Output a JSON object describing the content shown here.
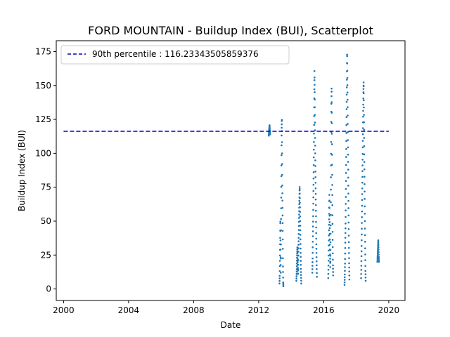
{
  "chart_data": {
    "type": "scatter",
    "title": "FORD MOUNTAIN - Buildup Index (BUI), Scatterplot",
    "xlabel": "Date",
    "ylabel": "Buildup Index (BUI)",
    "xlim": [
      1999.55,
      2021.0
    ],
    "ylim": [
      -8.5,
      183
    ],
    "x_ticks": [
      "2000",
      "2004",
      "2008",
      "2012",
      "2016",
      "2020"
    ],
    "y_ticks": [
      "0",
      "25",
      "50",
      "75",
      "100",
      "125",
      "150",
      "175"
    ],
    "grid": false,
    "legend_position": "top-left",
    "reference_line": {
      "label": "90th percentile : 116.23343505859376",
      "y": 116.23343505859376,
      "x_start": 2000.0,
      "x_end": 2020.0,
      "color": "#0000cc",
      "style": "dashed"
    },
    "series": [
      {
        "color": "#1f77b4",
        "marker_size": 2,
        "segments": [
          {
            "x_start": 2012.62,
            "x_end": 2012.7,
            "y_path": [
              113,
              116,
              118,
              121,
              117,
              114
            ]
          },
          {
            "x_start": 2013.28,
            "x_end": 2013.52,
            "y_path": [
              4,
              10,
              22,
              35,
              52,
              30,
              12,
              45,
              70,
              95,
              118,
              126,
              100,
              75,
              58,
              40,
              18,
              5,
              2
            ]
          },
          {
            "x_start": 2014.32,
            "x_end": 2014.62,
            "y_path": [
              6,
              14,
              24,
              31,
              20,
              10,
              26,
              38,
              52,
              64,
              76,
              60,
              44,
              28,
              14,
              4
            ]
          },
          {
            "x_start": 2015.3,
            "x_end": 2015.58,
            "y_path": [
              12,
              22,
              38,
              52,
              70,
              88,
              110,
              135,
              161,
              140,
              118,
              96,
              80,
              64,
              48,
              32,
              20,
              9
            ]
          },
          {
            "x_start": 2016.28,
            "x_end": 2016.58,
            "y_path": [
              8,
              18,
              30,
              42,
              55,
              70,
              52,
              38,
              26,
              16,
              30,
              50,
              80,
              108,
              132,
              150,
              125,
              100,
              76,
              52,
              33,
              18,
              10
            ]
          },
          {
            "x_start": 2017.28,
            "x_end": 2017.58,
            "y_path": [
              3,
              10,
              20,
              35,
              48,
              66,
              88,
              110,
              132,
              152,
              175,
              155,
              135,
              112,
              92,
              70,
              50,
              32,
              18,
              7
            ]
          },
          {
            "x_start": 2018.3,
            "x_end": 2018.58,
            "y_path": [
              8,
              18,
              30,
              44,
              58,
              72,
              86,
              100,
              116,
              130,
              145,
              153,
              136,
              118,
              98,
              80,
              62,
              44,
              28,
              14,
              6
            ]
          },
          {
            "x_start": 2019.3,
            "x_end": 2019.4,
            "y_path": [
              20,
              24,
              28,
              32,
              36,
              30,
              24,
              20
            ]
          }
        ]
      }
    ]
  }
}
